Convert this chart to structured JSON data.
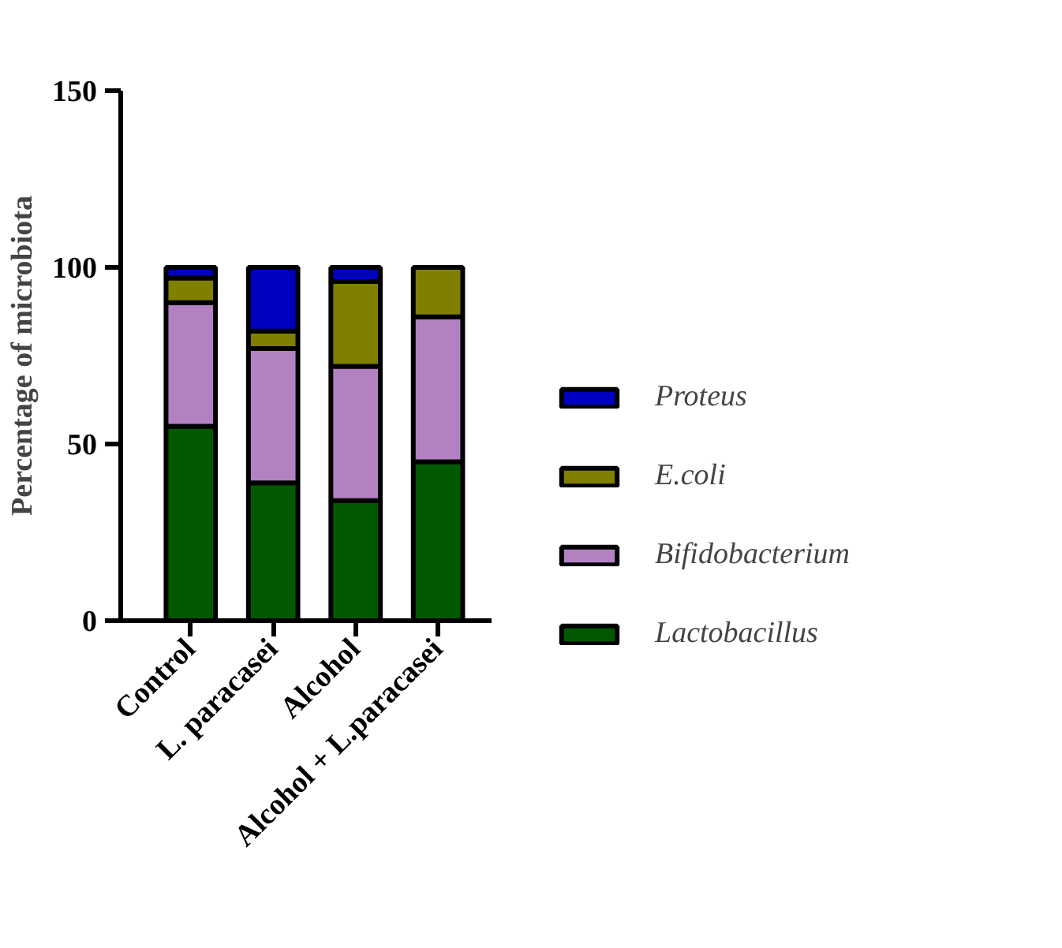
{
  "chart_data": {
    "type": "bar",
    "stacked": true,
    "ylabel": "Percentage of microbiota",
    "categories": [
      "Control",
      "L. paracasei",
      "Alcohol",
      "Alcohol + L.paracasei"
    ],
    "series": [
      {
        "name": "Lactobacillus",
        "color": "#005900",
        "values": [
          55,
          39,
          34,
          45
        ]
      },
      {
        "name": "Bifidobacterium",
        "color": "#b381c1",
        "values": [
          35,
          38,
          38,
          41
        ]
      },
      {
        "name": "E.coli",
        "color": "#7f7f00",
        "values": [
          7,
          5,
          24,
          14
        ]
      },
      {
        "name": "Proteus",
        "color": "#0000c0",
        "values": [
          3,
          18,
          4,
          0
        ]
      }
    ],
    "ylim": [
      0,
      150
    ],
    "yticks": [
      0,
      50,
      100,
      150
    ],
    "grid": false,
    "legend": "right"
  }
}
